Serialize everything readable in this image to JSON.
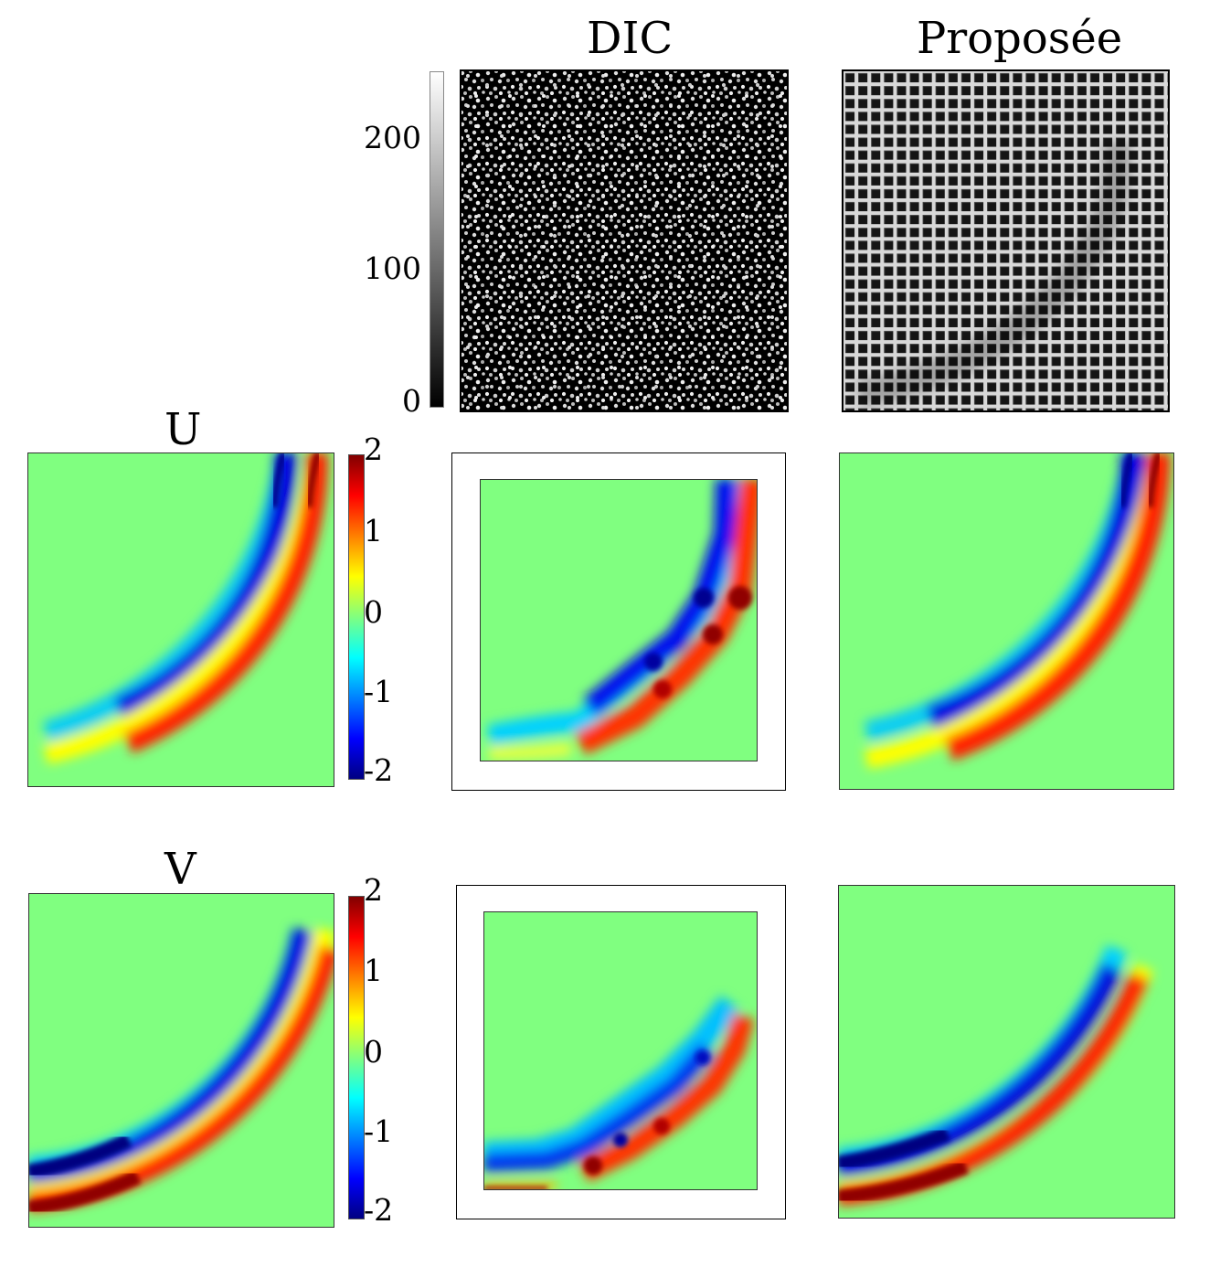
{
  "columns": {
    "dic_title": "DIC",
    "proposed_title": "Proposée"
  },
  "rows": {
    "u_title": "U",
    "v_title": "V"
  },
  "gray_colorbar": {
    "ticks": [
      "200",
      "100",
      "0"
    ],
    "range": [
      0,
      255
    ]
  },
  "jet_colorbar_u": {
    "ticks": [
      "2",
      "1",
      "0",
      "-1",
      "-2"
    ],
    "range": [
      -2,
      2
    ]
  },
  "jet_colorbar_v": {
    "ticks": [
      "2",
      "1",
      "0",
      "-1",
      "-2"
    ],
    "range": [
      -2,
      2
    ]
  },
  "colors": {
    "jet_dark_red": "#800000",
    "jet_red": "#ff0000",
    "jet_yellow": "#ffff00",
    "jet_green": "#80ff80",
    "jet_cyan": "#00ffff",
    "jet_blue": "#0000ff",
    "jet_dark_blue": "#000080"
  }
}
